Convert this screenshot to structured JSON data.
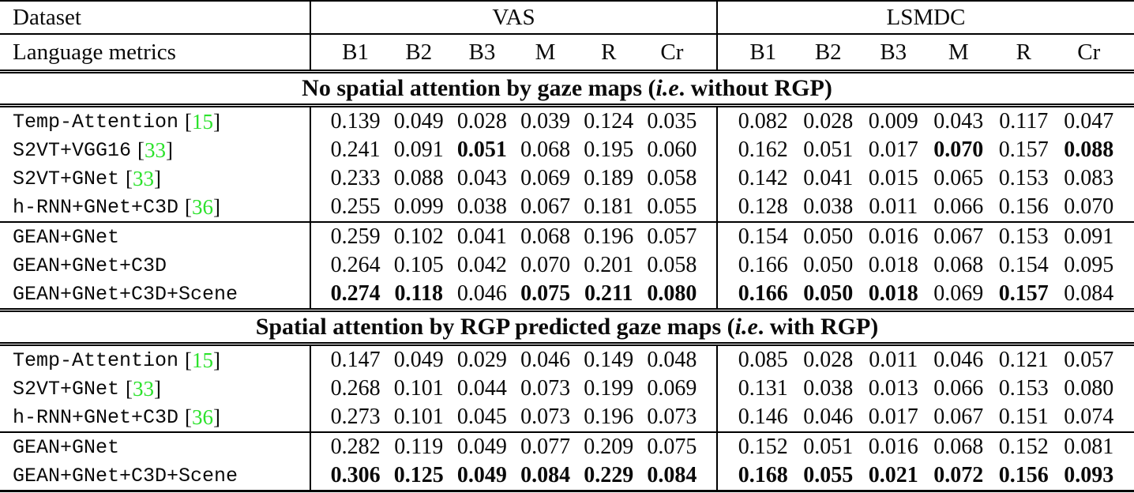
{
  "colors": {
    "citation_green": "#2ce22c",
    "text": "#0a0a0a",
    "border": "#000000",
    "background": "#ffffff"
  },
  "table": {
    "header": {
      "dataset_label": "Dataset",
      "metrics_label": "Language metrics",
      "groups": [
        "VAS",
        "LSMDC"
      ],
      "metric_columns": [
        "B1",
        "B2",
        "B3",
        "M",
        "R",
        "Cr"
      ]
    },
    "sections": [
      {
        "title_pre": "No spatial attention by gaze maps (",
        "title_ie": "i.e",
        "title_post": ". without RGP)",
        "rows": [
          {
            "method": "Temp-Attention",
            "cite": "15",
            "rule_after": false,
            "vas": [
              "0.139",
              "0.049",
              "0.028",
              "0.039",
              "0.124",
              "0.035"
            ],
            "vas_bold": [
              0,
              0,
              0,
              0,
              0,
              0
            ],
            "lsmdc": [
              "0.082",
              "0.028",
              "0.009",
              "0.043",
              "0.117",
              "0.047"
            ],
            "lsmdc_bold": [
              0,
              0,
              0,
              0,
              0,
              0
            ]
          },
          {
            "method": "S2VT+VGG16",
            "cite": "33",
            "rule_after": false,
            "vas": [
              "0.241",
              "0.091",
              "0.051",
              "0.068",
              "0.195",
              "0.060"
            ],
            "vas_bold": [
              0,
              0,
              1,
              0,
              0,
              0
            ],
            "lsmdc": [
              "0.162",
              "0.051",
              "0.017",
              "0.070",
              "0.157",
              "0.088"
            ],
            "lsmdc_bold": [
              0,
              0,
              0,
              1,
              0,
              1
            ]
          },
          {
            "method": "S2VT+GNet",
            "cite": "33",
            "rule_after": false,
            "vas": [
              "0.233",
              "0.088",
              "0.043",
              "0.069",
              "0.189",
              "0.058"
            ],
            "vas_bold": [
              0,
              0,
              0,
              0,
              0,
              0
            ],
            "lsmdc": [
              "0.142",
              "0.041",
              "0.015",
              "0.065",
              "0.153",
              "0.083"
            ],
            "lsmdc_bold": [
              0,
              0,
              0,
              0,
              0,
              0
            ]
          },
          {
            "method": "h-RNN+GNet+C3D",
            "cite": "36",
            "rule_after": true,
            "vas": [
              "0.255",
              "0.099",
              "0.038",
              "0.067",
              "0.181",
              "0.055"
            ],
            "vas_bold": [
              0,
              0,
              0,
              0,
              0,
              0
            ],
            "lsmdc": [
              "0.128",
              "0.038",
              "0.011",
              "0.066",
              "0.156",
              "0.070"
            ],
            "lsmdc_bold": [
              0,
              0,
              0,
              0,
              0,
              0
            ]
          },
          {
            "method": "GEAN+GNet",
            "cite": "",
            "rule_after": false,
            "vas": [
              "0.259",
              "0.102",
              "0.041",
              "0.068",
              "0.196",
              "0.057"
            ],
            "vas_bold": [
              0,
              0,
              0,
              0,
              0,
              0
            ],
            "lsmdc": [
              "0.154",
              "0.050",
              "0.016",
              "0.067",
              "0.153",
              "0.091"
            ],
            "lsmdc_bold": [
              0,
              0,
              0,
              0,
              0,
              0
            ]
          },
          {
            "method": "GEAN+GNet+C3D",
            "cite": "",
            "rule_after": false,
            "vas": [
              "0.264",
              "0.105",
              "0.042",
              "0.070",
              "0.201",
              "0.058"
            ],
            "vas_bold": [
              0,
              0,
              0,
              0,
              0,
              0
            ],
            "lsmdc": [
              "0.166",
              "0.050",
              "0.018",
              "0.068",
              "0.154",
              "0.095"
            ],
            "lsmdc_bold": [
              0,
              0,
              0,
              0,
              0,
              0
            ]
          },
          {
            "method": "GEAN+GNet+C3D+Scene",
            "cite": "",
            "rule_after": false,
            "vas": [
              "0.274",
              "0.118",
              "0.046",
              "0.075",
              "0.211",
              "0.080"
            ],
            "vas_bold": [
              1,
              1,
              0,
              1,
              1,
              1
            ],
            "lsmdc": [
              "0.166",
              "0.050",
              "0.018",
              "0.069",
              "0.157",
              "0.084"
            ],
            "lsmdc_bold": [
              1,
              1,
              1,
              0,
              1,
              0
            ]
          }
        ]
      },
      {
        "title_pre": "Spatial attention by RGP predicted gaze maps (",
        "title_ie": "i.e",
        "title_post": ". with RGP)",
        "rows": [
          {
            "method": "Temp-Attention",
            "cite": "15",
            "rule_after": false,
            "vas": [
              "0.147",
              "0.049",
              "0.029",
              "0.046",
              "0.149",
              "0.048"
            ],
            "vas_bold": [
              0,
              0,
              0,
              0,
              0,
              0
            ],
            "lsmdc": [
              "0.085",
              "0.028",
              "0.011",
              "0.046",
              "0.121",
              "0.057"
            ],
            "lsmdc_bold": [
              0,
              0,
              0,
              0,
              0,
              0
            ]
          },
          {
            "method": "S2VT+GNet",
            "cite": "33",
            "rule_after": false,
            "vas": [
              "0.268",
              "0.101",
              "0.044",
              "0.073",
              "0.199",
              "0.069"
            ],
            "vas_bold": [
              0,
              0,
              0,
              0,
              0,
              0
            ],
            "lsmdc": [
              "0.131",
              "0.038",
              "0.013",
              "0.066",
              "0.153",
              "0.080"
            ],
            "lsmdc_bold": [
              0,
              0,
              0,
              0,
              0,
              0
            ]
          },
          {
            "method": "h-RNN+GNet+C3D",
            "cite": "36",
            "rule_after": true,
            "vas": [
              "0.273",
              "0.101",
              "0.045",
              "0.073",
              "0.196",
              "0.073"
            ],
            "vas_bold": [
              0,
              0,
              0,
              0,
              0,
              0
            ],
            "lsmdc": [
              "0.146",
              "0.046",
              "0.017",
              "0.067",
              "0.151",
              "0.074"
            ],
            "lsmdc_bold": [
              0,
              0,
              0,
              0,
              0,
              0
            ]
          },
          {
            "method": "GEAN+GNet",
            "cite": "",
            "rule_after": false,
            "vas": [
              "0.282",
              "0.119",
              "0.049",
              "0.077",
              "0.209",
              "0.075"
            ],
            "vas_bold": [
              0,
              0,
              0,
              0,
              0,
              0
            ],
            "lsmdc": [
              "0.152",
              "0.051",
              "0.016",
              "0.068",
              "0.152",
              "0.081"
            ],
            "lsmdc_bold": [
              0,
              0,
              0,
              0,
              0,
              0
            ]
          },
          {
            "method": "GEAN+GNet+C3D+Scene",
            "cite": "",
            "rule_after": false,
            "vas": [
              "0.306",
              "0.125",
              "0.049",
              "0.084",
              "0.229",
              "0.084"
            ],
            "vas_bold": [
              1,
              1,
              1,
              1,
              1,
              1
            ],
            "lsmdc": [
              "0.168",
              "0.055",
              "0.021",
              "0.072",
              "0.156",
              "0.093"
            ],
            "lsmdc_bold": [
              1,
              1,
              1,
              1,
              1,
              1
            ]
          }
        ]
      }
    ]
  }
}
